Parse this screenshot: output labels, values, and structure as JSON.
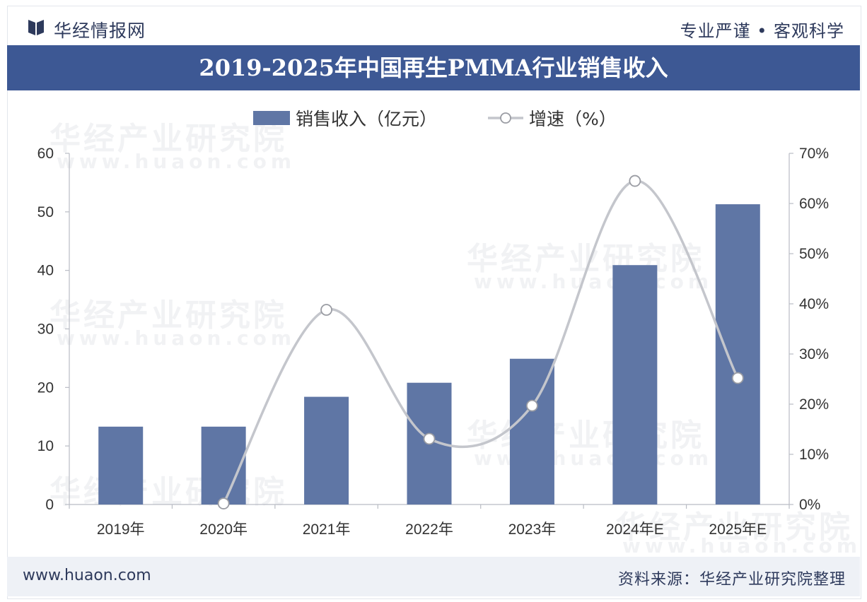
{
  "header": {
    "brand": "华经情报网",
    "slogan": "专业严谨 • 客观科学",
    "title": "2019-2025年中国再生PMMA行业销售收入"
  },
  "watermark": {
    "text": "华经产业研究院",
    "url": "www.huaon.com"
  },
  "footer": {
    "website": "www.huaon.com",
    "source": "资料来源：华经产业研究院整理"
  },
  "colors": {
    "bar": "#5f76a5",
    "line": "#c4c6cc",
    "title_band": "#3d5894",
    "text": "#2e3a5c"
  },
  "chart_data": {
    "type": "bar",
    "title": "2019-2025年中国再生PMMA行业销售收入",
    "categories": [
      "2019年",
      "2020年",
      "2021年",
      "2022年",
      "2023年",
      "2024年E",
      "2025年E"
    ],
    "series": [
      {
        "name": "销售收入（亿元）",
        "type": "bar",
        "axis": "left",
        "values": [
          13.3,
          13.3,
          18.4,
          20.8,
          24.9,
          40.9,
          51.3
        ]
      },
      {
        "name": "增速（%）",
        "type": "line",
        "axis": "right",
        "smooth": true,
        "values": [
          null,
          0.2,
          38.8,
          13.1,
          19.7,
          64.5,
          25.2
        ]
      }
    ],
    "y_left": {
      "min": 0,
      "max": 60,
      "ticks": [
        0,
        10,
        20,
        30,
        40,
        50,
        60
      ]
    },
    "y_right": {
      "min": 0,
      "max": 70,
      "ticks": [
        "0%",
        "10%",
        "20%",
        "30%",
        "40%",
        "50%",
        "60%",
        "70%"
      ]
    },
    "legend_position": "top-center",
    "grid": false
  }
}
